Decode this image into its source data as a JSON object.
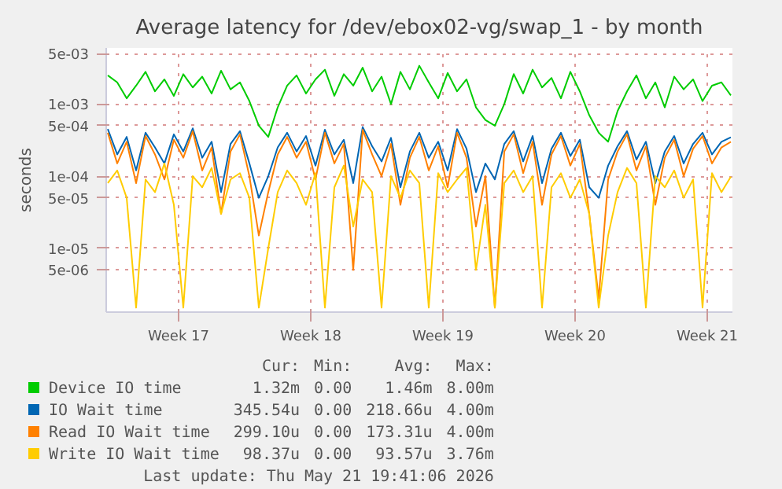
{
  "chart_data": {
    "type": "line",
    "title": "Average latency for /dev/ebox02-vg/swap_1 - by month",
    "ylabel": "seconds",
    "x": [
      "2026-04-18T18:00",
      "2026-04-19T06:00",
      "2026-04-19T18:00",
      "2026-04-20T06:00",
      "2026-04-20T18:00",
      "2026-04-21T06:00",
      "2026-04-21T18:00",
      "2026-04-22T06:00",
      "2026-04-22T18:00",
      "2026-04-23T06:00",
      "2026-04-23T18:00",
      "2026-04-24T06:00",
      "2026-04-24T18:00",
      "2026-04-25T06:00",
      "2026-04-25T18:00",
      "2026-04-26T06:00",
      "2026-04-26T18:00",
      "2026-04-27T06:00",
      "2026-04-27T18:00",
      "2026-04-28T06:00",
      "2026-04-28T18:00",
      "2026-04-29T06:00",
      "2026-04-29T18:00",
      "2026-04-30T06:00",
      "2026-04-30T18:00",
      "2026-05-01T06:00",
      "2026-05-01T18:00",
      "2026-05-02T06:00",
      "2026-05-02T18:00",
      "2026-05-03T06:00",
      "2026-05-03T18:00",
      "2026-05-04T06:00",
      "2026-05-04T18:00",
      "2026-05-05T06:00",
      "2026-05-05T18:00",
      "2026-05-06T06:00",
      "2026-05-06T18:00",
      "2026-05-07T06:00",
      "2026-05-07T18:00",
      "2026-05-08T06:00",
      "2026-05-08T18:00",
      "2026-05-09T06:00",
      "2026-05-09T18:00",
      "2026-05-10T06:00",
      "2026-05-10T18:00",
      "2026-05-11T06:00",
      "2026-05-11T18:00",
      "2026-05-12T06:00",
      "2026-05-12T18:00",
      "2026-05-13T06:00",
      "2026-05-13T18:00",
      "2026-05-14T06:00",
      "2026-05-14T18:00",
      "2026-05-15T06:00",
      "2026-05-15T18:00",
      "2026-05-16T06:00",
      "2026-05-16T18:00",
      "2026-05-17T06:00",
      "2026-05-17T18:00",
      "2026-05-18T06:00",
      "2026-05-18T18:00",
      "2026-05-19T06:00",
      "2026-05-19T18:00",
      "2026-05-20T06:00",
      "2026-05-20T18:00",
      "2026-05-21T06:00",
      "2026-05-21T18:00"
    ],
    "series": [
      {
        "name": "Device IO time",
        "color": "#00cc00",
        "values": [
          0.0025,
          0.002,
          0.0012,
          0.0018,
          0.0028,
          0.0015,
          0.0022,
          0.0013,
          0.0026,
          0.0017,
          0.0024,
          0.0014,
          0.0029,
          0.0016,
          0.002,
          0.0011,
          0.0005,
          0.00035,
          0.0009,
          0.0018,
          0.0025,
          0.0014,
          0.0022,
          0.003,
          0.0013,
          0.0026,
          0.0018,
          0.0032,
          0.0015,
          0.0024,
          0.001,
          0.0028,
          0.0016,
          0.0034,
          0.002,
          0.0012,
          0.0027,
          0.0015,
          0.0022,
          0.0009,
          0.0006,
          0.0005,
          0.001,
          0.0026,
          0.0014,
          0.003,
          0.0017,
          0.0023,
          0.0012,
          0.0028,
          0.0015,
          0.0007,
          0.0004,
          0.0003,
          0.0008,
          0.0015,
          0.0025,
          0.0012,
          0.002,
          0.0009,
          0.0024,
          0.0016,
          0.0022,
          0.0011,
          0.0018,
          0.002,
          0.00132
        ]
      },
      {
        "name": "IO Wait time",
        "color": "#0066b3",
        "values": [
          0.00045,
          0.0002,
          0.00035,
          0.00012,
          0.0004,
          0.00025,
          0.00015,
          0.00038,
          0.00022,
          0.00046,
          0.00018,
          0.0003,
          6e-05,
          0.00028,
          0.00042,
          0.00015,
          5e-05,
          0.0001,
          0.00025,
          0.0004,
          0.00022,
          0.00036,
          0.00014,
          0.00044,
          0.0002,
          0.00032,
          8e-05,
          0.00048,
          0.00026,
          0.00016,
          0.00034,
          7e-05,
          0.00022,
          0.0004,
          0.00018,
          0.0003,
          0.00012,
          0.00045,
          0.00024,
          6e-05,
          0.00015,
          9e-05,
          0.00028,
          0.00042,
          0.00016,
          0.00036,
          8e-05,
          0.00024,
          0.0004,
          0.00019,
          0.00032,
          7e-05,
          5e-05,
          0.00014,
          0.00026,
          0.00042,
          0.00017,
          0.0003,
          8e-05,
          0.00022,
          0.00036,
          0.00015,
          0.00028,
          0.0004,
          0.0002,
          0.0003,
          0.00034554
        ]
      },
      {
        "name": "Read IO Wait time",
        "color": "#ff8000",
        "values": [
          0.0004,
          0.00015,
          0.0003,
          8e-05,
          0.00036,
          0.0002,
          9e-05,
          0.00032,
          0.00018,
          0.00042,
          0.00012,
          0.00025,
          3e-05,
          0.00022,
          0.00038,
          0.0001,
          1.5e-05,
          6e-05,
          0.0002,
          0.00035,
          0.00018,
          0.0003,
          9e-05,
          0.0004,
          0.00015,
          0.00028,
          5e-06,
          0.00044,
          0.0002,
          0.0001,
          0.00028,
          4e-05,
          0.00018,
          0.00035,
          0.00012,
          0.00026,
          7e-05,
          0.0004,
          0.00018,
          2e-05,
          0.0001,
          1.5e-06,
          0.00022,
          0.00038,
          0.00011,
          0.0003,
          4e-05,
          0.0002,
          0.00036,
          0.00014,
          0.00028,
          3e-05,
          2e-06,
          9e-05,
          0.00022,
          0.00038,
          0.00012,
          0.00026,
          4e-05,
          0.00018,
          0.00032,
          0.0001,
          0.00024,
          0.00036,
          0.00015,
          0.00025,
          0.0002991
        ]
      },
      {
        "name": "Write IO Wait time",
        "color": "#ffcc00",
        "values": [
          8e-05,
          0.00012,
          5e-05,
          1.5e-06,
          9e-05,
          6e-05,
          0.00015,
          4e-05,
          1.5e-06,
          0.0001,
          7e-05,
          0.00013,
          3e-05,
          9e-05,
          0.00011,
          5e-05,
          1.5e-06,
          1e-05,
          6e-05,
          0.00012,
          8e-05,
          4e-05,
          0.00011,
          1.5e-06,
          7e-05,
          0.00014,
          2e-05,
          9e-05,
          6e-05,
          1.5e-06,
          0.0001,
          5e-05,
          0.00012,
          8e-05,
          1.5e-06,
          0.00011,
          6e-05,
          9e-05,
          0.00013,
          5e-06,
          4e-05,
          1.5e-06,
          8e-05,
          0.00012,
          6e-05,
          0.0001,
          1.5e-06,
          7e-05,
          0.00011,
          5e-05,
          9e-05,
          3e-05,
          1.5e-06,
          1.5e-05,
          6e-05,
          0.00013,
          8e-05,
          1.5e-06,
          0.0001,
          7e-05,
          0.00012,
          5e-05,
          9e-05,
          1.5e-06,
          0.00011,
          6e-05,
          9.837e-05
        ]
      }
    ],
    "xlim": [
      "2026-04-18T16:00",
      "2026-05-21T20:00"
    ],
    "xticks": [
      {
        "value": "2026-04-22T12:00",
        "label": "Week 17"
      },
      {
        "value": "2026-04-29T12:00",
        "label": "Week 18"
      },
      {
        "value": "2026-05-06T12:00",
        "label": "Week 19"
      },
      {
        "value": "2026-05-13T12:00",
        "label": "Week 20"
      },
      {
        "value": "2026-05-20T12:00",
        "label": "Week 21"
      }
    ],
    "log": "y",
    "ylim": [
      1.3e-06,
      0.006
    ],
    "yticks": [
      {
        "value": 5e-06,
        "label": "5e-06"
      },
      {
        "value": 1e-05,
        "label": "1e-05"
      },
      {
        "value": 5e-05,
        "label": "5e-05"
      },
      {
        "value": 0.0001,
        "label": "1e-04"
      },
      {
        "value": 0.0005,
        "label": "5e-04"
      },
      {
        "value": 0.001,
        "label": "1e-03"
      },
      {
        "value": 0.005,
        "label": "5e-03"
      }
    ],
    "grid": true,
    "legend": "bottom",
    "line_style": "solid",
    "marker": "none",
    "annotations": [
      "Cur:",
      "Min:",
      "Avg:",
      "Max:",
      "1.32m",
      "0.00",
      "1.46m",
      "8.00m",
      "345.54u",
      "0.00",
      "218.66u",
      "4.00m",
      "299.10u",
      "0.00",
      "173.31u",
      "4.00m",
      "98.37u",
      "0.00",
      "93.57u",
      "3.76m",
      "Last update: Thu May 21 19:41:06 2026"
    ]
  }
}
